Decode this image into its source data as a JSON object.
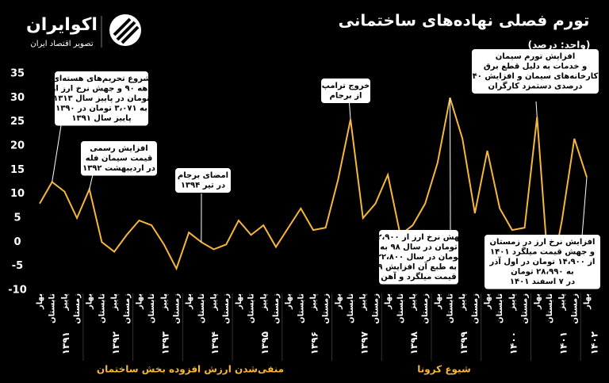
{
  "brand": {
    "name": "اکوایران",
    "tagline": "تصویر اقتصاد ایران"
  },
  "chart_data": {
    "type": "line",
    "title": "تورم فصلی نهاده‌های ساختمانی",
    "subtitle": "(واحد: درصد)",
    "categories": [
      "بهار",
      "تابستان",
      "پاییز",
      "زمستان",
      "بهار",
      "تابستان",
      "پاییز",
      "زمستان",
      "بهار",
      "تابستان",
      "پاییز",
      "زمستان",
      "بهار",
      "تابستان",
      "پاییز",
      "زمستان",
      "بهار",
      "تابستان",
      "پاییز",
      "زمستان",
      "بهار",
      "تابستان",
      "پاییز",
      "زمستان",
      "بهار",
      "تابستان",
      "پاییز",
      "زمستان",
      "بهار",
      "تابستان",
      "پاییز",
      "زمستان",
      "بهار",
      "تابستان",
      "پاییز",
      "زمستان",
      "بهار",
      "تابستان",
      "پاییز",
      "زمستان",
      "بهار",
      "تابستان",
      "پاییز",
      "زمستان",
      "بهار"
    ],
    "years": [
      "۱۳۹۱",
      "۱۳۹۲",
      "۱۳۹۳",
      "۱۳۹۴",
      "۱۳۹۵",
      "۱۳۹۶",
      "۱۳۹۷",
      "۱۳۹۸",
      "۱۳۹۹",
      "۱۴۰۰",
      "۱۴۰۱",
      "۱۴۰۲"
    ],
    "series": [
      {
        "name": "تورم فصلی",
        "color": "#f6b73c",
        "values": [
          8,
          12.5,
          10.5,
          5,
          11,
          0,
          -2,
          1.5,
          4.5,
          3.5,
          -0.5,
          -5.5,
          2,
          0,
          -1.5,
          -0.5,
          4.5,
          1.5,
          3.5,
          -1,
          3,
          7,
          2.5,
          3,
          13,
          25.5,
          5,
          8,
          14,
          1.5,
          3.5,
          8,
          16.5,
          30,
          21.5,
          6,
          19,
          7,
          2.5,
          3,
          26,
          -9,
          4.5,
          21.5,
          13.5
        ]
      }
    ],
    "ylim": [
      -10,
      35
    ],
    "yticks": [
      -10,
      -5,
      0,
      5,
      10,
      15,
      20,
      25,
      30,
      35
    ],
    "annotations": [
      [
        "شروع تحریم‌های هسته‌ای",
        "دهه ۹۰ و جهش نرخ ارز از",
        "۱۳۱۳ تومان در پاییز سال",
        "۱۳۹۰ به ۳،۰۷۱ تومان در",
        "پاییز سال ۱۳۹۱"
      ],
      [
        "افزایش رسمی",
        "قیمت سیمان فله",
        "در اردیبهشت ۱۳۹۲"
      ],
      [
        "امضای برجام",
        "در تیر ۱۳۹۴"
      ],
      [
        "خروج ترامپ",
        "از برجام"
      ],
      [
        "جهش نرخ ارز از ۱۲،۹۰۰",
        "تومان در سال ۹۸ به",
        "۲۲،۸۰۰ تومان در سال",
        "۹۹ و به طبع آن افزایش",
        "قیمت میلگرد و آهن"
      ],
      [
        "افزایش تورم سیمان",
        "و خدمات به دلیل قطع برق",
        "کارخانه‌های سیمان و افزایش ۴۰",
        "درصدی دستمزد کارگران"
      ],
      [
        "افزایش نرخ ارز در زمستان",
        "۱۴۰۱ و جهش قیمت میلگرد",
        "از ۱۴،۹۰۰ تومان در اول آذر",
        "به ۲۸،۹۹۰ تومان",
        "در ۷ اسفند ۱۴۰۱"
      ]
    ],
    "periods": [
      "منفی‌شدن ارزش افزوده بخش ساختمان",
      "شیوع کرونا"
    ]
  }
}
